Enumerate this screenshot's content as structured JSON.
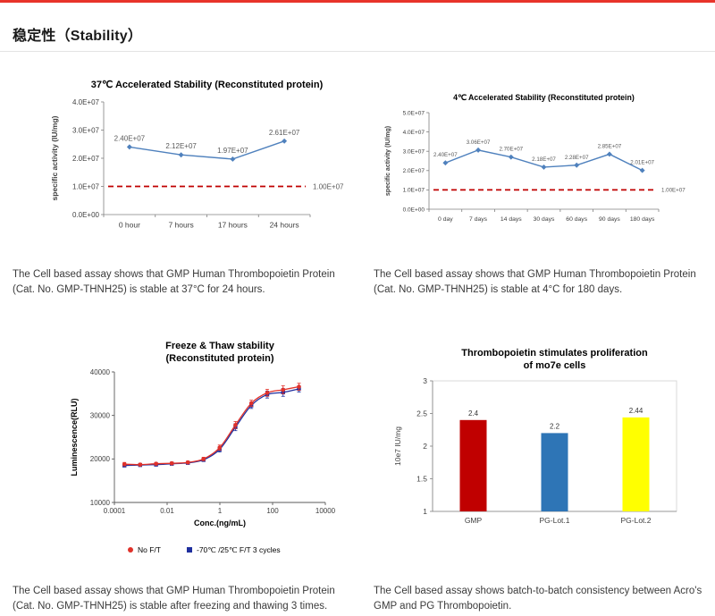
{
  "theme": {
    "accent_red": "#e8342a",
    "divider": "#e4e4e4"
  },
  "header": {
    "title": "稳定性（Stability）"
  },
  "chart_data": [
    {
      "id": "stability-37c",
      "type": "line",
      "title": "37℃ Accelerated Stability (Reconstituted protein)",
      "ylabel": "specific activity (IU/mg)",
      "categories": [
        "0 hour",
        "7 hours",
        "17 hours",
        "24 hours"
      ],
      "values": [
        24000000,
        21200000,
        19700000,
        26100000
      ],
      "point_labels": [
        "2.40E+07",
        "2.12E+07",
        "1.97E+07",
        "2.61E+07"
      ],
      "ylim": [
        0,
        40000000
      ],
      "ytick_labels": [
        "0.0E+00",
        "1.0E+07",
        "2.0E+07",
        "3.0E+07",
        "4.0E+07"
      ],
      "threshold": {
        "value": 10000000,
        "label": "1.00E+07",
        "color": "#c00000"
      },
      "line_color": "#4f81bd",
      "grid": false,
      "caption": "The Cell based assay shows that GMP Human Thrombopoietin Protein (Cat. No. GMP-THNH25) is stable at 37°C for 24 hours."
    },
    {
      "id": "stability-4c",
      "type": "line",
      "title": "4℃ Accelerated  Stability (Reconstituted protein)",
      "ylabel": "specific activity (IU/mg)",
      "categories": [
        "0 day",
        "7 days",
        "14 days",
        "30 days",
        "60 days",
        "90 days",
        "180 days"
      ],
      "values": [
        24000000,
        30600000,
        27000000,
        21800000,
        22800000,
        28500000,
        20100000
      ],
      "point_labels": [
        "2.40E+07",
        "3.06E+07",
        "2.70E+07",
        "2.18E+07",
        "2.28E+07",
        "2.85E+07",
        "2.01E+07"
      ],
      "ylim": [
        0,
        50000000
      ],
      "ytick_labels": [
        "0.0E+00",
        "1.0E+07",
        "2.0E+07",
        "3.0E+07",
        "4.0E+07",
        "5.0E+07"
      ],
      "threshold": {
        "value": 10000000,
        "label": "1.00E+07",
        "color": "#c00000"
      },
      "line_color": "#4f81bd",
      "grid": false,
      "caption": "The Cell based assay shows that GMP Human Thrombopoietin Protein (Cat. No. GMP-THNH25) is stable at 4°C for 180 days."
    },
    {
      "id": "freeze-thaw",
      "type": "scatter",
      "title": "Freeze & Thaw stability",
      "title2": "(Reconstituted protein)",
      "xlabel": "Conc.(ng/mL)",
      "ylabel": "Luminescence(RLU)",
      "xscale": "log",
      "xlim": [
        0.0001,
        10000
      ],
      "xtick_values": [
        0.0001,
        0.01,
        1,
        100,
        10000
      ],
      "xtick_labels": [
        "0.0001",
        "0.01",
        "1",
        "100",
        "10000"
      ],
      "ylim": [
        10000,
        40000
      ],
      "ytick_labels": [
        "10000",
        "20000",
        "30000",
        "40000"
      ],
      "legend_position": "bottom",
      "series": [
        {
          "name": "No F/T",
          "color": "#e0312a",
          "marker": "circle",
          "x": [
            0.00024,
            0.00095,
            0.0038,
            0.015,
            0.061,
            0.24,
            0.98,
            3.9,
            15.6,
            62.5,
            250,
            1000
          ],
          "y": [
            18800,
            18700,
            18900,
            19000,
            19200,
            20000,
            22600,
            27800,
            32800,
            35200,
            35900,
            36600
          ],
          "err": [
            400,
            300,
            300,
            300,
            300,
            400,
            600,
            800,
            700,
            800,
            900,
            800
          ]
        },
        {
          "name": "-70℃ /25℃ F/T 3 cycles",
          "color": "#1f2f9e",
          "marker": "square",
          "x": [
            0.00024,
            0.00095,
            0.0038,
            0.015,
            0.061,
            0.24,
            0.98,
            3.9,
            15.6,
            62.5,
            250,
            1000
          ],
          "y": [
            18500,
            18600,
            18700,
            18900,
            19100,
            19800,
            22200,
            27300,
            32300,
            34800,
            35300,
            36100
          ],
          "err": [
            300,
            300,
            300,
            300,
            300,
            400,
            600,
            800,
            700,
            800,
            900,
            700
          ]
        }
      ],
      "caption": "The Cell based assay shows that GMP Human Thrombopoietin Protein (Cat. No. GMP-THNH25) is stable after freezing and thawing 3 times."
    },
    {
      "id": "batch-consistency",
      "type": "bar",
      "title": "Thrombopoietin stimulates proliferation",
      "title2": "of mo7e cells",
      "ylabel": "10e7 IU/mg",
      "categories": [
        "GMP",
        "PG-Lot.1",
        "PG-Lot.2"
      ],
      "values": [
        2.4,
        2.2,
        2.44
      ],
      "value_labels": [
        "2.4",
        "2.2",
        "2.44"
      ],
      "bar_colors": [
        "#c00000",
        "#2e75b6",
        "#ffff00"
      ],
      "ylim": [
        1,
        3
      ],
      "ytick_labels": [
        "1",
        "1.5",
        "2",
        "2.5",
        "3"
      ],
      "grid": false,
      "caption": "The Cell based assay shows batch-to-batch consistency between Acro's GMP and PG Thrombopoietin."
    }
  ]
}
